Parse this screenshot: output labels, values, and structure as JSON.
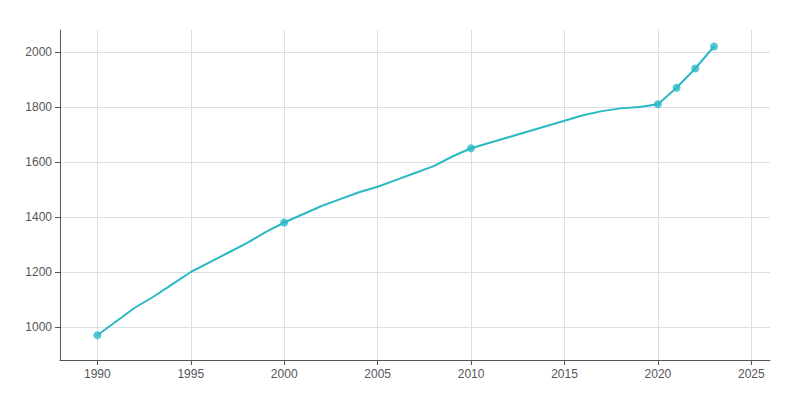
{
  "chart_data": {
    "type": "line",
    "series": [
      {
        "type": "line",
        "color": "#2ab8c5",
        "x": [
          1990,
          1991,
          1992,
          1993,
          1994,
          1995,
          1996,
          1997,
          1998,
          1999,
          2000,
          2001,
          2002,
          2003,
          2004,
          2005,
          2006,
          2007,
          2008,
          2009,
          2010,
          2011,
          2012,
          2013,
          2014,
          2015,
          2016,
          2017,
          2018,
          2019,
          2020,
          2021,
          2022,
          2023
        ],
        "values": [
          970,
          1020,
          1070,
          1110,
          1155,
          1200,
          1235,
          1270,
          1305,
          1345,
          1380,
          1410,
          1440,
          1465,
          1490,
          1510,
          1535,
          1560,
          1585,
          1620,
          1650,
          1670,
          1690,
          1710,
          1730,
          1750,
          1770,
          1785,
          1795,
          1800,
          1810,
          1870,
          1940,
          2020
        ]
      },
      {
        "type": "scatter",
        "color": "#2ab8c5",
        "marker": "circle",
        "x": [
          1990,
          2000,
          2010,
          2020,
          2021,
          2022,
          2023
        ],
        "values": [
          970,
          1380,
          1650,
          1810,
          1870,
          1940,
          2020
        ]
      }
    ],
    "xlim": [
      1988,
      2026
    ],
    "xticks": [
      1990,
      1995,
      2000,
      2005,
      2010,
      2015,
      2020,
      2025
    ],
    "ylim": [
      880,
      2080
    ],
    "yticks": [
      1000,
      1200,
      1400,
      1600,
      1800,
      2000
    ],
    "grid": true
  }
}
